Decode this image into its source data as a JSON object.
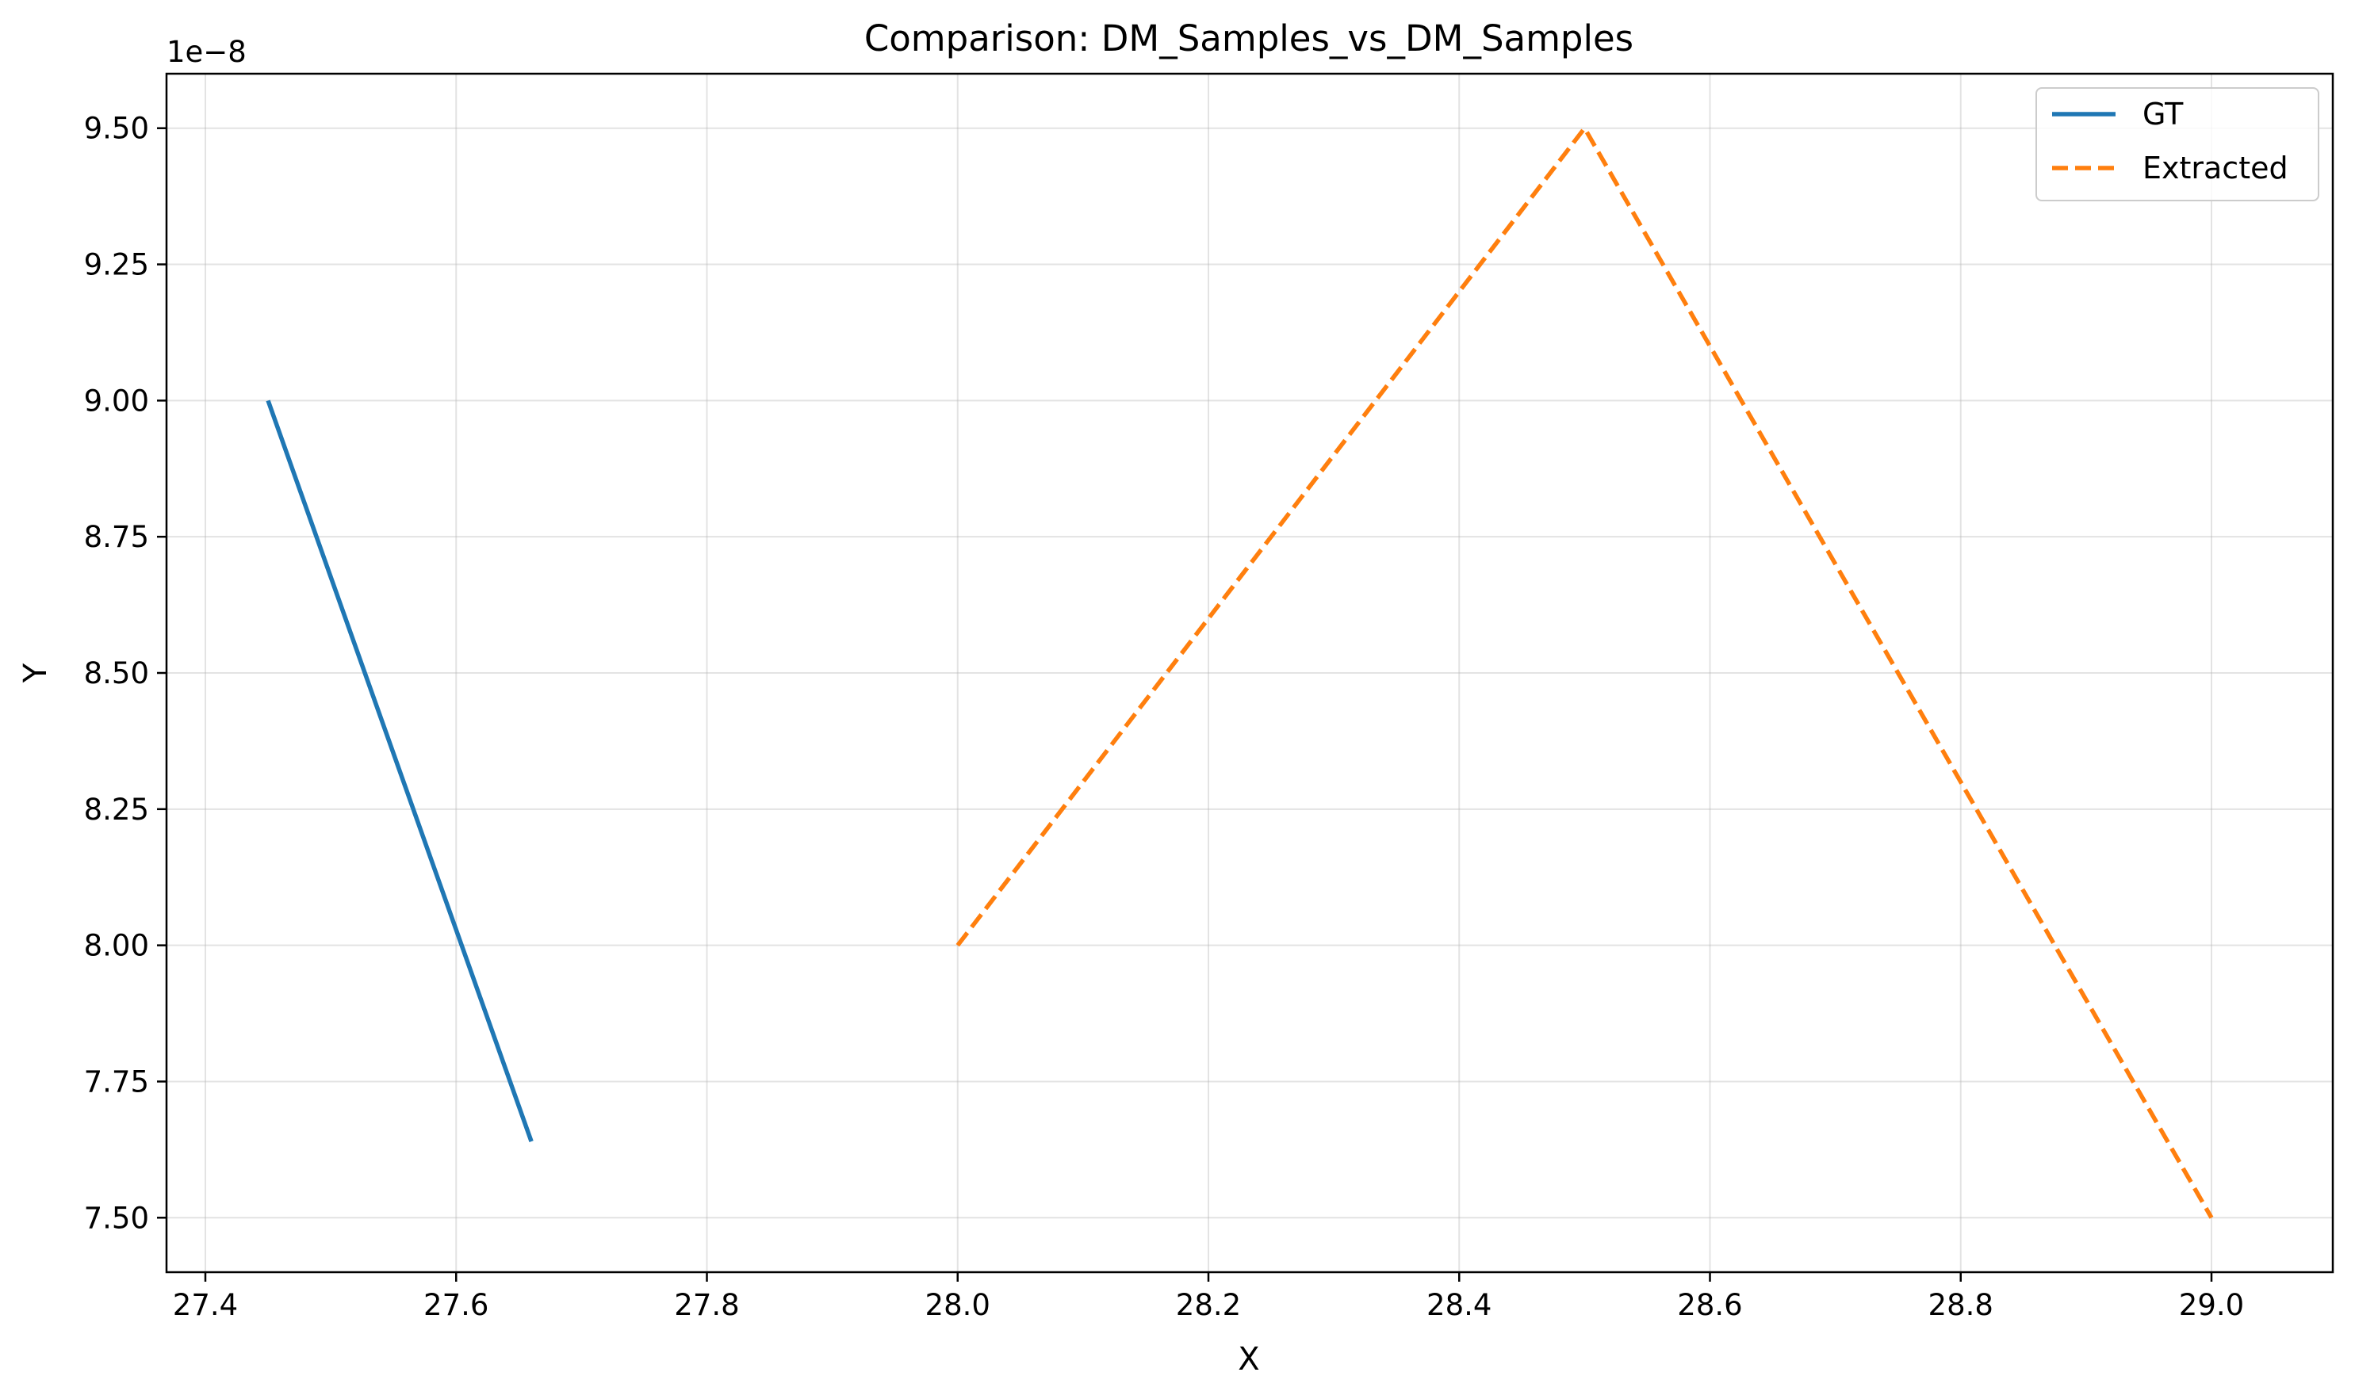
{
  "chart_data": {
    "type": "line",
    "title": "Comparison: DM_Samples_vs_DM_Samples",
    "xlabel": "X",
    "ylabel": "Y",
    "y_offset_label": "1e−8",
    "xlim": [
      27.4,
      29.0
    ],
    "ylim": [
      7.4e-08,
      9.6e-08
    ],
    "x_ticks": [
      27.4,
      27.6,
      27.8,
      28.0,
      28.2,
      28.4,
      28.6,
      28.8,
      29.0
    ],
    "x_tick_labels": [
      "27.4",
      "27.6",
      "27.8",
      "28.0",
      "28.2",
      "28.4",
      "28.6",
      "28.8",
      "29.0"
    ],
    "y_ticks": [
      7.5e-08,
      7.75e-08,
      8e-08,
      8.25e-08,
      8.5e-08,
      8.75e-08,
      9e-08,
      9.25e-08,
      9.5e-08
    ],
    "y_tick_labels": [
      "7.50",
      "7.75",
      "8.00",
      "8.25",
      "8.50",
      "8.75",
      "9.00",
      "9.25",
      "9.50"
    ],
    "grid": true,
    "legend_position": "top-right",
    "series": [
      {
        "name": "GT",
        "color": "#1f77b4",
        "style": "solid",
        "x": [
          27.45,
          27.66
        ],
        "y": [
          9e-08,
          7.64e-08
        ]
      },
      {
        "name": "Extracted",
        "color": "#ff7f0e",
        "style": "dashed",
        "x": [
          28.0,
          28.5,
          29.0
        ],
        "y": [
          8e-08,
          9.5e-08,
          7.5e-08
        ]
      }
    ]
  }
}
